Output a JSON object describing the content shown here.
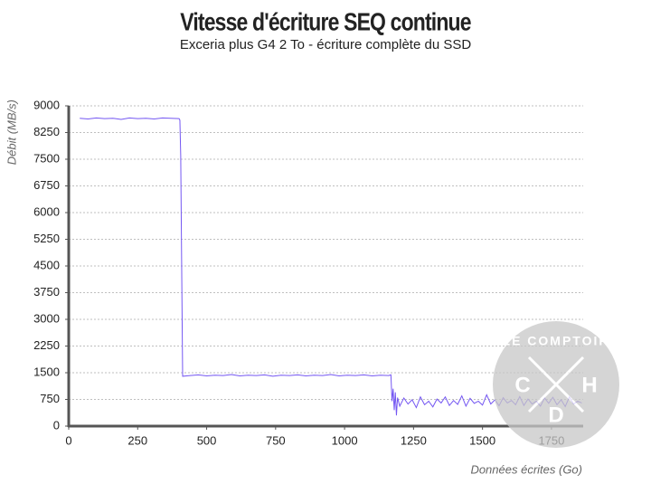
{
  "chart_data": {
    "type": "line",
    "title": "Vitesse d'écriture SEQ continue",
    "subtitle": "Exceria plus G4 2 To - écriture complète du SSD",
    "y_label": "Débit (MB/s)",
    "x_label": "Données écrites (Go)",
    "color": "#7457f2",
    "grid": true,
    "xlim": [
      0,
      1865
    ],
    "ylim": [
      0,
      9000
    ],
    "xticks": [
      0,
      250,
      500,
      750,
      1000,
      1250,
      1500,
      1750
    ],
    "yticks": [
      0,
      750,
      1500,
      2250,
      3000,
      3750,
      4500,
      5250,
      6000,
      6750,
      7500,
      8250,
      9000
    ],
    "x": [
      40,
      70,
      100,
      130,
      160,
      190,
      220,
      250,
      280,
      310,
      340,
      370,
      400,
      403,
      406,
      410,
      413,
      440,
      470,
      500,
      530,
      560,
      590,
      620,
      650,
      680,
      710,
      740,
      770,
      800,
      830,
      860,
      890,
      920,
      950,
      980,
      1010,
      1040,
      1070,
      1100,
      1130,
      1160,
      1168,
      1172,
      1176,
      1180,
      1184,
      1188,
      1192,
      1200,
      1215,
      1230,
      1245,
      1260,
      1275,
      1290,
      1305,
      1320,
      1335,
      1350,
      1365,
      1380,
      1395,
      1410,
      1425,
      1440,
      1455,
      1470,
      1485,
      1500,
      1515,
      1530,
      1545,
      1560,
      1575,
      1590,
      1605,
      1620,
      1635,
      1650,
      1665,
      1680,
      1695,
      1710,
      1725,
      1740,
      1755,
      1770,
      1785,
      1800,
      1815,
      1830,
      1845,
      1860
    ],
    "values": [
      8650,
      8630,
      8660,
      8640,
      8650,
      8620,
      8660,
      8640,
      8650,
      8630,
      8660,
      8650,
      8640,
      8600,
      7600,
      4000,
      1400,
      1420,
      1440,
      1410,
      1430,
      1420,
      1450,
      1410,
      1430,
      1420,
      1440,
      1400,
      1430,
      1420,
      1440,
      1410,
      1430,
      1420,
      1450,
      1410,
      1430,
      1420,
      1440,
      1410,
      1430,
      1420,
      1440,
      700,
      1050,
      450,
      950,
      300,
      800,
      560,
      790,
      620,
      740,
      520,
      820,
      600,
      700,
      540,
      760,
      650,
      820,
      580,
      720,
      610,
      850,
      560,
      780,
      640,
      700,
      590,
      880,
      620,
      740,
      570,
      800,
      650,
      720,
      600,
      830,
      580,
      760,
      620,
      700,
      560,
      790,
      640,
      810,
      600,
      740,
      550,
      820,
      620,
      700,
      650
    ],
    "watermark": {
      "text": "LE COMPTOIR",
      "letters": [
        "C",
        "H",
        "D"
      ]
    }
  }
}
